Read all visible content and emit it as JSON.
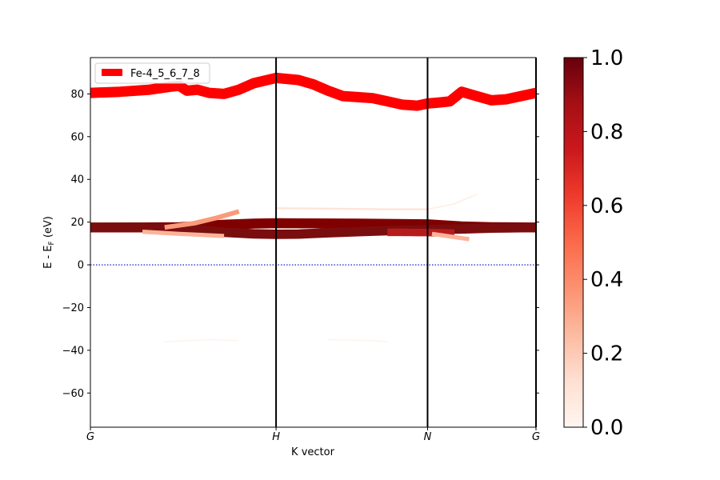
{
  "chart_data": {
    "type": "line",
    "title": "",
    "xlabel": "K vector",
    "ylabel": "E - E_F (eV)",
    "ylabel_main": "E - E",
    "ylabel_sub": "F",
    "ylabel_unit": " (eV)",
    "xlim": [
      0,
      3
    ],
    "ylim": [
      -76,
      97
    ],
    "yticks": [
      80,
      60,
      40,
      20,
      0,
      -20,
      -40,
      -60
    ],
    "ytick_labels": [
      "80",
      "60",
      "40",
      "20",
      "0",
      "−20",
      "−40",
      "−60"
    ],
    "kpoints": [
      {
        "label": "G",
        "x": 0
      },
      {
        "label": "H",
        "x": 1.25
      },
      {
        "label": "N",
        "x": 2.27
      },
      {
        "label": "G",
        "x": 3
      }
    ],
    "fermi_level": 0,
    "legend": {
      "label": "Fe-4_5_6_7_8",
      "position": "upper-left",
      "color": "#ff0000"
    },
    "colorbar": {
      "min": 0,
      "max": 1,
      "ticks": [
        "0.0",
        "0.2",
        "0.4",
        "0.6",
        "0.8",
        "1.0"
      ],
      "cmap": "Reds"
    },
    "series": [
      {
        "weight": 1.0,
        "color": "#ff0000",
        "x": [
          0,
          0.2,
          0.4,
          0.55,
          0.6,
          0.65,
          0.72,
          0.8,
          0.9,
          1.0,
          1.1,
          1.25,
          1.4,
          1.5,
          1.6,
          1.7,
          1.8,
          1.9,
          2.0,
          2.1,
          2.2,
          2.27,
          2.35,
          2.42,
          2.5,
          2.6,
          2.7,
          2.8,
          2.9,
          3.0
        ],
        "y": [
          80.5,
          81,
          82,
          83.5,
          83.8,
          81.5,
          82,
          80.5,
          80,
          82,
          85,
          87.5,
          86.5,
          84.5,
          81.5,
          79,
          78.5,
          78,
          76.5,
          75,
          74.5,
          75.5,
          76,
          76.5,
          81,
          79,
          77,
          77.5,
          79,
          80.5
        ]
      },
      {
        "weight": 0.95,
        "color": "#800000",
        "x": [
          0,
          0.3,
          0.6,
          0.9,
          1.1,
          1.25,
          1.5,
          1.8,
          2.0,
          2.27,
          2.5,
          2.7,
          3.0
        ],
        "y": [
          17.5,
          17.5,
          17.6,
          18.8,
          19.3,
          19.5,
          19.4,
          19.3,
          19.2,
          19,
          18,
          17.6,
          17.5
        ]
      },
      {
        "weight": 0.9,
        "color": "#7a0e0e",
        "x": [
          0,
          0.3,
          0.5,
          0.7,
          0.9,
          1.1,
          1.25,
          1.4,
          1.6,
          1.8,
          2.0,
          2.2,
          2.27,
          2.5,
          2.7,
          3.0
        ],
        "y": [
          17.5,
          17.6,
          17.2,
          16.5,
          15.2,
          14.5,
          14.3,
          14.4,
          15,
          15.5,
          16,
          16.3,
          16.5,
          16.8,
          17.2,
          17.5
        ]
      },
      {
        "weight": 0.7,
        "color": "#b71c1c",
        "x": [
          2.0,
          2.1,
          2.2,
          2.27,
          2.35,
          2.45
        ],
        "y": [
          15.2,
          15.2,
          15.1,
          15.1,
          15,
          14.8
        ]
      },
      {
        "weight": 0.4,
        "color": "#fb9a7a",
        "x": [
          0.5,
          0.7,
          0.85,
          1.0
        ],
        "y": [
          17.5,
          19.5,
          22,
          25
        ]
      },
      {
        "weight": 0.35,
        "color": "#fcb399",
        "x": [
          0.35,
          0.6,
          0.9
        ],
        "y": [
          15.5,
          14.5,
          13.5
        ]
      },
      {
        "weight": 0.35,
        "color": "#fcb399",
        "x": [
          2.3,
          2.4,
          2.55
        ],
        "y": [
          14.5,
          13.5,
          12
        ]
      },
      {
        "weight": 0.12,
        "color": "#fee5d9",
        "x": [
          1.25,
          1.6,
          2.0,
          2.27
        ],
        "y": [
          26.5,
          26.3,
          26,
          26
        ]
      },
      {
        "weight": 0.08,
        "color": "#fff0e8",
        "x": [
          2.27,
          2.45,
          2.6
        ],
        "y": [
          26,
          28.5,
          33
        ]
      },
      {
        "weight": 0.05,
        "color": "#fff3ed",
        "x": [
          0.5,
          0.8,
          1.0
        ],
        "y": [
          -36,
          -35,
          -35.5
        ]
      },
      {
        "weight": 0.05,
        "color": "#fff3ed",
        "x": [
          1.6,
          1.9,
          2.0
        ],
        "y": [
          -35,
          -35.5,
          -36
        ]
      }
    ]
  }
}
